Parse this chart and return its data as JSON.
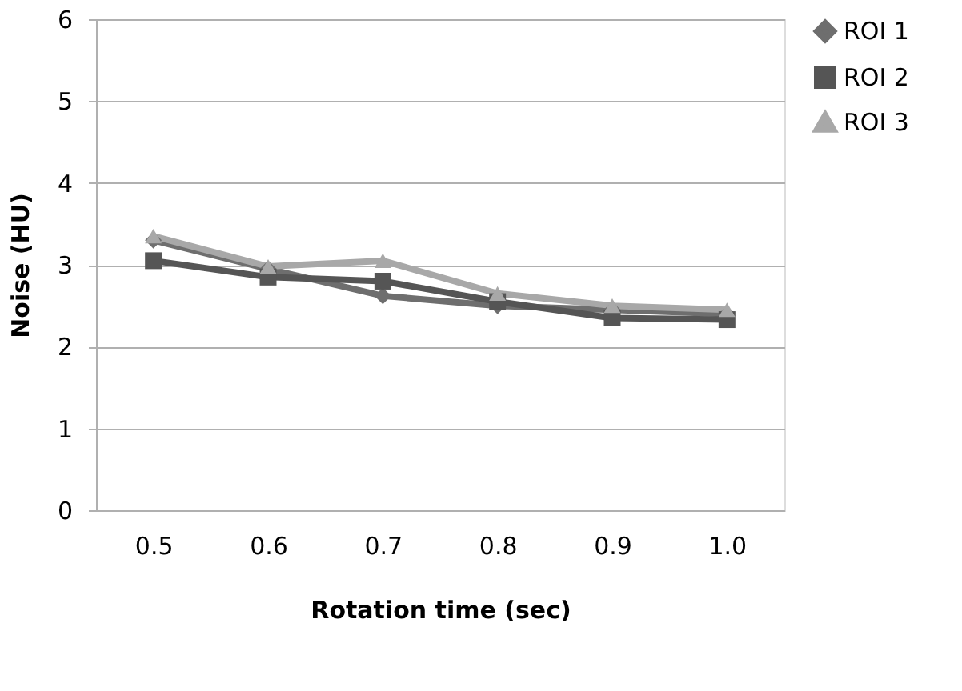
{
  "chart_data": {
    "type": "line",
    "xlabel": "Rotation time (sec)",
    "ylabel": "Noise (HU)",
    "categories": [
      "0.5",
      "0.6",
      "0.7",
      "0.8",
      "0.9",
      "1.0"
    ],
    "series": [
      {
        "name": "ROI 1",
        "color": "#6e6e6e",
        "marker": "diamond",
        "values": [
          3.3,
          2.95,
          2.62,
          2.5,
          2.45,
          2.4
        ]
      },
      {
        "name": "ROI 2",
        "color": "#555555",
        "marker": "square",
        "values": [
          3.05,
          2.85,
          2.8,
          2.55,
          2.35,
          2.33
        ]
      },
      {
        "name": "ROI 3",
        "color": "#a8a8a8",
        "marker": "triangle",
        "values": [
          3.35,
          2.98,
          3.05,
          2.65,
          2.5,
          2.45
        ]
      }
    ],
    "ylim": [
      0,
      6
    ],
    "yticks": [
      0,
      1,
      2,
      3,
      4,
      5,
      6
    ],
    "grid": "y",
    "legend": "right",
    "line_style": "solid"
  }
}
